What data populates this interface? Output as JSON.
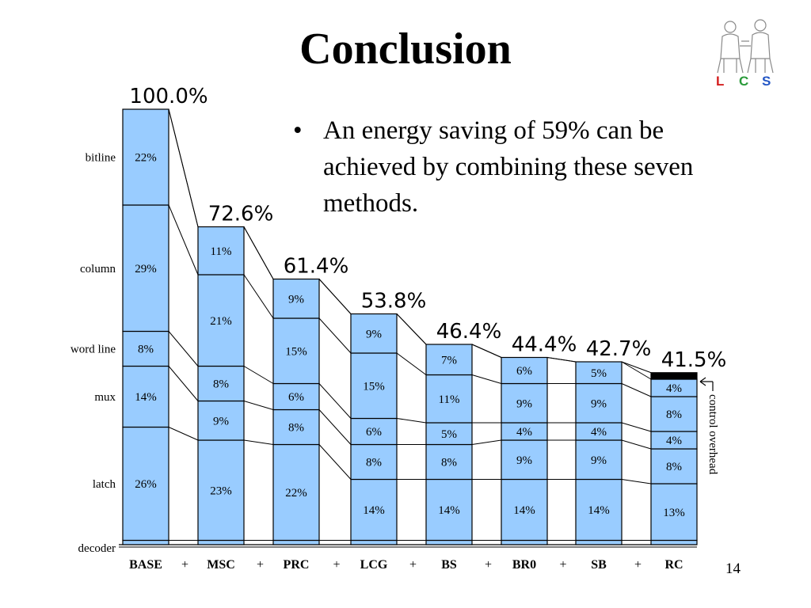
{
  "slide": {
    "title": "Conclusion",
    "bullet": "An energy saving of 59% can be achieved by combining these seven methods.",
    "page_number": "14",
    "logo_text": [
      "L",
      "C",
      "S"
    ]
  },
  "colors": {
    "bar_fill": "#99ccff",
    "overhead_fill": "#000000",
    "line": "#000000",
    "logo_l": "#d41f1f",
    "logo_c": "#2a9a3a",
    "logo_s": "#2457c5"
  },
  "chart_data": {
    "type": "bar",
    "stacked": true,
    "categories": [
      "BASE",
      "MSC",
      "PRC",
      "LCG",
      "BS",
      "BR0",
      "SB",
      "RC"
    ],
    "separators": [
      "+",
      "+",
      "+",
      "+",
      "+",
      "+",
      "+"
    ],
    "totals": [
      "100.0%",
      "72.6%",
      "61.4%",
      "53.8%",
      "46.4%",
      "44.4%",
      "42.7%",
      "41.5%"
    ],
    "total_values": [
      100.0,
      72.6,
      61.4,
      53.8,
      46.4,
      44.4,
      42.7,
      41.5
    ],
    "series": [
      {
        "name": "decoder",
        "values": [
          1,
          1,
          1,
          1,
          1,
          1,
          1,
          1
        ],
        "labels": [
          "",
          "",
          "",
          "",
          "",
          "",
          "",
          ""
        ]
      },
      {
        "name": "latch",
        "values": [
          26,
          23,
          22,
          14,
          14,
          14,
          14,
          13
        ],
        "labels": [
          "26%",
          "23%",
          "22%",
          "14%",
          "14%",
          "14%",
          "14%",
          "13%"
        ]
      },
      {
        "name": "mux",
        "values": [
          14,
          9,
          8,
          8,
          8,
          9,
          9,
          8
        ],
        "labels": [
          "14%",
          "9%",
          "8%",
          "8%",
          "8%",
          "9%",
          "9%",
          "8%"
        ]
      },
      {
        "name": "word line",
        "values": [
          8,
          8,
          6,
          6,
          5,
          4,
          4,
          4
        ],
        "labels": [
          "8%",
          "8%",
          "6%",
          "6%",
          "5%",
          "4%",
          "4%",
          "4%"
        ]
      },
      {
        "name": "column",
        "values": [
          29,
          21,
          15,
          15,
          11,
          9,
          9,
          8
        ],
        "labels": [
          "29%",
          "21%",
          "15%",
          "15%",
          "11%",
          "9%",
          "9%",
          "8%"
        ]
      },
      {
        "name": "bitline",
        "values": [
          22,
          11,
          9,
          9,
          7,
          6,
          5,
          4
        ],
        "labels": [
          "22%",
          "11%",
          "9%",
          "9%",
          "7%",
          "6%",
          "5%",
          "4%"
        ]
      },
      {
        "name": "control overhead",
        "values": [
          0,
          0,
          0,
          0,
          0,
          0,
          0,
          1.5
        ],
        "labels": [
          "",
          "",
          "",
          "",
          "",
          "",
          "",
          ""
        ]
      }
    ],
    "row_labels": [
      "bitline",
      "column",
      "word line",
      "mux",
      "latch",
      "decoder"
    ],
    "annotation": "control overhead",
    "ylim": [
      0,
      100
    ]
  }
}
